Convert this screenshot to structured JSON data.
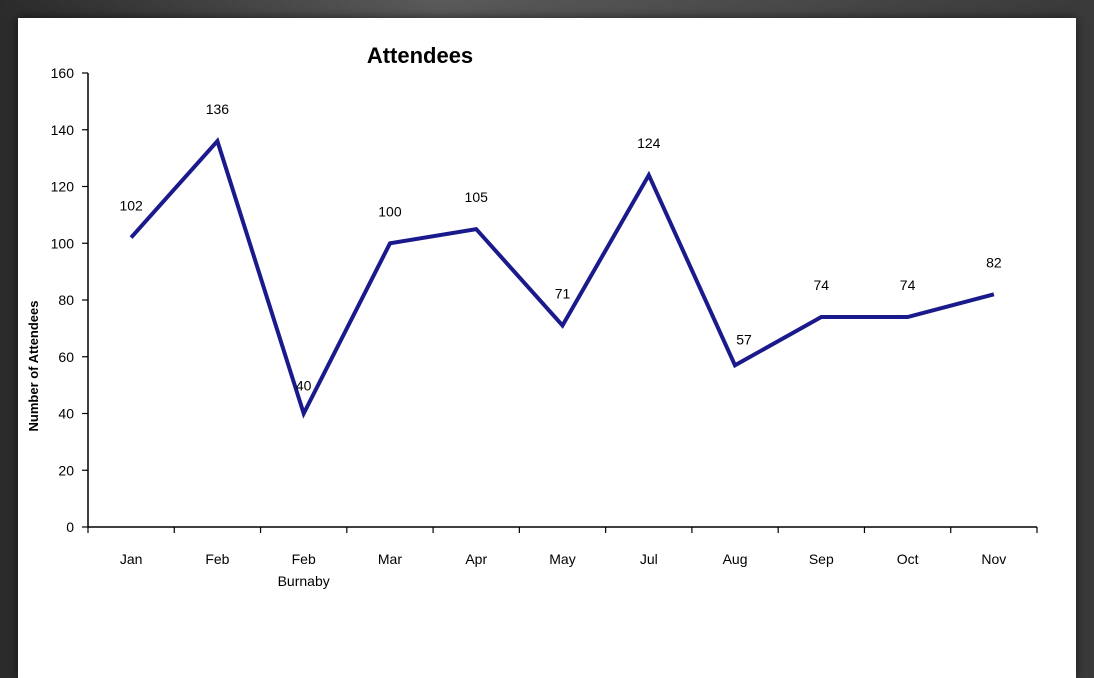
{
  "chart_data": {
    "type": "line",
    "title": "Attendees",
    "xlabel": "",
    "ylabel": "Number of Attendees",
    "categories": [
      [
        "Jan"
      ],
      [
        "Feb"
      ],
      [
        "Feb",
        "Burnaby"
      ],
      [
        "Mar"
      ],
      [
        "Apr"
      ],
      [
        "May"
      ],
      [
        "Jul"
      ],
      [
        "Aug"
      ],
      [
        "Sep"
      ],
      [
        "Oct"
      ],
      [
        "Nov"
      ]
    ],
    "values": [
      102,
      136,
      40,
      100,
      105,
      71,
      124,
      57,
      74,
      74,
      82
    ],
    "data_labels": [
      "102",
      "136",
      "40",
      "100",
      "105",
      "71",
      "124",
      "57",
      "74",
      "74",
      "82"
    ],
    "ylim": [
      0,
      160
    ],
    "yticks": [
      0,
      20,
      40,
      60,
      80,
      100,
      120,
      140,
      160
    ],
    "line_color": "#1a1a8c",
    "grid": false,
    "legend": "none"
  }
}
